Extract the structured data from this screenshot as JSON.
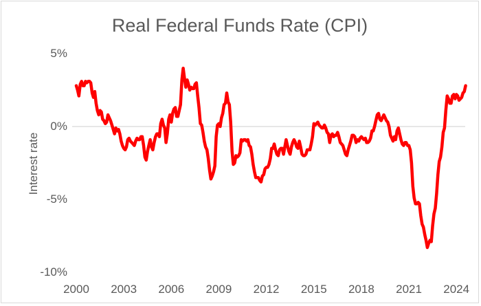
{
  "colors": {
    "line": "#fe0000",
    "text": "#595959",
    "gridline": "#d6d6d6",
    "frame_border": "#d9d9d9",
    "background": "#ffffff"
  },
  "chart_data": {
    "type": "line",
    "title": "Real Federal Funds Rate (CPI)",
    "xlabel": "",
    "ylabel": "Interest rate",
    "legend": "none",
    "grid": "horizontal zero line only",
    "xlim": [
      2000,
      2024.8
    ],
    "ylim": [
      -10,
      5.5
    ],
    "x_tick_labels": [
      "2000",
      "2003",
      "2006",
      "2009",
      "2012",
      "2015",
      "2018",
      "2021",
      "2024"
    ],
    "y_ticks": [
      {
        "label": "5%",
        "value": 5
      },
      {
        "label": "0%",
        "value": 0
      },
      {
        "label": "-5%",
        "value": -5
      },
      {
        "label": "-10%",
        "value": -10
      }
    ],
    "zero_line_value": 0,
    "x_start": {
      "year": 2000,
      "month": 1
    },
    "frequency": "monthly",
    "series": [
      {
        "name": "Real federal funds rate (CPI-deflated)",
        "color": "#fe0000",
        "values": [
          2.8,
          2.5,
          2.1,
          2.9,
          3.1,
          2.8,
          2.8,
          3.1,
          3.0,
          3.1,
          3.1,
          3.0,
          2.3,
          2.0,
          2.4,
          1.6,
          1.1,
          0.8,
          1.1,
          1.0,
          0.5,
          0.4,
          0.2,
          0.3,
          0.8,
          0.6,
          0.4,
          0.1,
          -0.2,
          -0.5,
          -0.1,
          -0.3,
          -0.2,
          -0.5,
          -1.0,
          -1.3,
          -1.5,
          -1.6,
          -1.4,
          -0.9,
          -0.8,
          -1.0,
          -1.1,
          -1.2,
          -1.3,
          -1.0,
          -0.8,
          -0.9,
          -0.9,
          -0.7,
          -0.7,
          -1.3,
          -2.1,
          -2.3,
          -1.7,
          -1.3,
          -0.9,
          -1.4,
          -1.6,
          -1.1,
          -0.7,
          -0.5,
          -0.5,
          -0.7,
          0.2,
          0.5,
          0.1,
          -0.1,
          -1.1,
          -0.5,
          0.5,
          0.8,
          0.3,
          0.9,
          1.2,
          1.3,
          0.7,
          0.7,
          1.1,
          1.5,
          3.2,
          4.0,
          3.3,
          2.7,
          3.2,
          2.9,
          2.5,
          2.7,
          2.6,
          2.6,
          2.9,
          3.0,
          2.1,
          1.3,
          0.2,
          0.1,
          -0.4,
          -1.0,
          -1.4,
          -1.6,
          -2.2,
          -3.0,
          -3.6,
          -3.4,
          -3.1,
          -2.7,
          -0.7,
          0.1,
          0.2,
          0.0,
          0.6,
          0.9,
          1.5,
          1.6,
          2.3,
          1.7,
          1.5,
          0.3,
          -1.7,
          -2.6,
          -2.5,
          -2.0,
          -2.1,
          -2.0,
          -1.8,
          -0.9,
          -1.0,
          -0.9,
          -0.9,
          -1.0,
          -0.9,
          -1.3,
          -1.4,
          -1.9,
          -2.6,
          -3.1,
          -3.5,
          -3.5,
          -3.5,
          -3.7,
          -3.8,
          -3.4,
          -3.3,
          -2.9,
          -2.8,
          -2.8,
          -2.6,
          -2.2,
          -1.5,
          -1.5,
          -1.2,
          -1.6,
          -1.9,
          -2.0,
          -1.6,
          -1.5,
          -1.5,
          -1.9,
          -1.4,
          -0.9,
          -1.3,
          -1.7,
          -1.9,
          -1.4,
          -1.1,
          -0.9,
          -1.1,
          -1.4,
          -1.5,
          -1.0,
          -1.4,
          -1.9,
          -2.0,
          -2.0,
          -1.9,
          -1.6,
          -1.6,
          -1.6,
          -1.2,
          -0.7,
          0.2,
          0.1,
          0.2,
          0.3,
          0.1,
          0.0,
          -0.1,
          -0.1,
          0.1,
          -0.1,
          -0.4,
          -0.5,
          -1.1,
          -0.6,
          -0.5,
          -0.7,
          -0.6,
          -0.6,
          -0.4,
          -0.7,
          -1.1,
          -1.2,
          -1.3,
          -1.6,
          -1.9,
          -2.0,
          -1.6,
          -1.3,
          -1.0,
          -0.6,
          -0.6,
          -0.7,
          -1.1,
          -0.9,
          -1.0,
          -0.8,
          -0.7,
          -0.8,
          -0.9,
          -0.8,
          -1.1,
          -1.1,
          -1.0,
          -0.8,
          -0.3,
          -0.3,
          0.0,
          0.4,
          0.8,
          0.9,
          0.5,
          0.4,
          0.6,
          0.8,
          0.6,
          0.4,
          0.3,
          0.0,
          -0.6,
          -0.8,
          -1.0,
          -0.7,
          -0.9,
          -0.3,
          -0.1,
          -0.5,
          -0.9,
          -1.2,
          -1.3,
          -1.1,
          -1.1,
          -1.3,
          -1.3,
          -1.6,
          -2.5,
          -4.1,
          -4.9,
          -5.3,
          -5.3,
          -5.2,
          -5.3,
          -6.1,
          -6.7,
          -6.9,
          -7.4,
          -7.8,
          -8.3,
          -8.0,
          -7.8,
          -7.9,
          -6.8,
          -6.0,
          -5.6,
          -4.6,
          -3.3,
          -2.4,
          -2.1,
          -1.4,
          -0.4,
          -0.1,
          1.1,
          2.1,
          1.9,
          1.6,
          1.6,
          2.1,
          2.2,
          1.9,
          2.2,
          2.1,
          1.8,
          1.9,
          2.0,
          2.3,
          2.4,
          2.8
        ]
      }
    ]
  }
}
